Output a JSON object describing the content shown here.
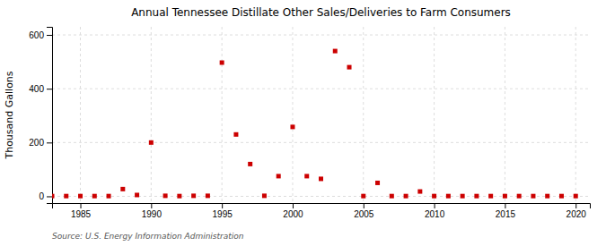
{
  "chart_data": {
    "type": "scatter",
    "title": "Annual Tennessee Distillate Other Sales/Deliveries to Farm Consumers",
    "ylabel": "Thousand Gallons",
    "annotations": [
      "Source: U.S. Energy Information Administration"
    ],
    "x": [
      1983,
      1984,
      1985,
      1986,
      1987,
      1988,
      1989,
      1990,
      1991,
      1992,
      1993,
      1994,
      1995,
      1996,
      1997,
      1998,
      1999,
      2000,
      2001,
      2002,
      2003,
      2004,
      2005,
      2006,
      2007,
      2008,
      2009,
      2010,
      2011,
      2012,
      2013,
      2014,
      2015,
      2016,
      2017,
      2018,
      2019,
      2020
    ],
    "values": [
      1,
      1,
      1,
      1,
      1,
      27,
      5,
      200,
      2,
      1,
      2,
      2,
      497,
      230,
      120,
      2,
      75,
      258,
      75,
      65,
      540,
      480,
      1,
      50,
      1,
      1,
      18,
      1,
      1,
      1,
      1,
      1,
      1,
      1,
      1,
      1,
      1,
      1
    ],
    "color": "#cc0000",
    "marker": "square",
    "xlim": [
      1983,
      2021
    ],
    "ylim": [
      -25,
      630
    ],
    "xticks": [
      1985,
      1990,
      1995,
      2000,
      2005,
      2010,
      2015,
      2020
    ],
    "yticks": [
      0,
      200,
      400,
      600
    ],
    "grid": true
  }
}
